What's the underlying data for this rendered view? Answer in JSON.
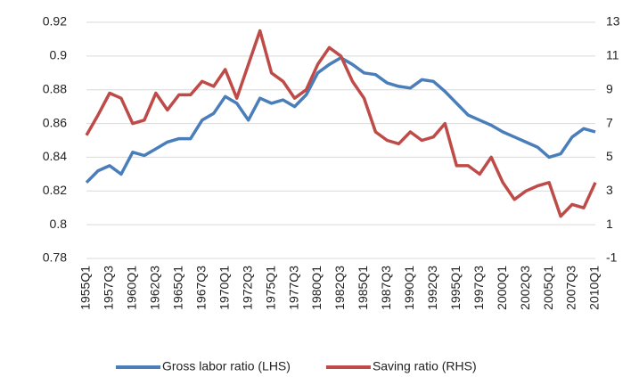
{
  "chart_data": {
    "type": "line",
    "categories": [
      "1955Q1",
      null,
      "1957Q3",
      null,
      "1960Q1",
      null,
      "1962Q3",
      null,
      "1965Q1",
      null,
      "1967Q3",
      null,
      "1970Q1",
      null,
      "1972Q3",
      null,
      "1975Q1",
      null,
      "1977Q3",
      null,
      "1980Q1",
      null,
      "1982Q3",
      null,
      "1985Q1",
      null,
      "1987Q3",
      null,
      "1990Q1",
      null,
      "1992Q3",
      null,
      "1995Q1",
      null,
      "1997Q3",
      null,
      "2000Q1",
      null,
      "2002Q3",
      null,
      "2005Q1",
      null,
      "2007Q3",
      null,
      "2010Q1"
    ],
    "series": [
      {
        "name": "Gross labor ratio (LHS)",
        "color": "#4a7ebb",
        "axis": "y",
        "values": [
          0.825,
          0.832,
          0.835,
          0.83,
          0.843,
          0.841,
          0.845,
          0.849,
          0.851,
          0.851,
          0.862,
          0.866,
          0.876,
          0.872,
          0.862,
          0.875,
          0.872,
          0.874,
          0.87,
          0.877,
          0.89,
          0.895,
          0.899,
          0.895,
          0.89,
          0.889,
          0.884,
          0.882,
          0.881,
          0.886,
          0.885,
          0.879,
          0.872,
          0.865,
          0.862,
          0.859,
          0.855,
          0.852,
          0.849,
          0.846,
          0.84,
          0.842,
          0.852,
          0.857,
          0.855
        ]
      },
      {
        "name": "Saving ratio (RHS)",
        "color": "#be4b48",
        "axis": "y2",
        "values": [
          6.3,
          7.5,
          8.8,
          8.5,
          7,
          7.2,
          8.8,
          7.8,
          8.7,
          8.7,
          9.5,
          9.2,
          10.2,
          8.5,
          10.5,
          12.5,
          10,
          9.5,
          8.5,
          9,
          10.5,
          11.5,
          11,
          9.5,
          8.5,
          6.5,
          6,
          5.8,
          6.5,
          6,
          6.2,
          7,
          4.5,
          4.5,
          4,
          5,
          3.5,
          2.5,
          3,
          3.3,
          3.5,
          1.5,
          2.2,
          2,
          3.5
        ]
      }
    ],
    "ylim": [
      0.78,
      0.92
    ],
    "yticks": [
      0.78,
      0.8,
      0.82,
      0.84,
      0.86,
      0.88,
      0.9,
      0.92
    ],
    "y2lim": [
      -1,
      13
    ],
    "y2ticks": [
      -1,
      1,
      3,
      5,
      7,
      9,
      11,
      13
    ],
    "grid": true,
    "legend": "bottom"
  }
}
